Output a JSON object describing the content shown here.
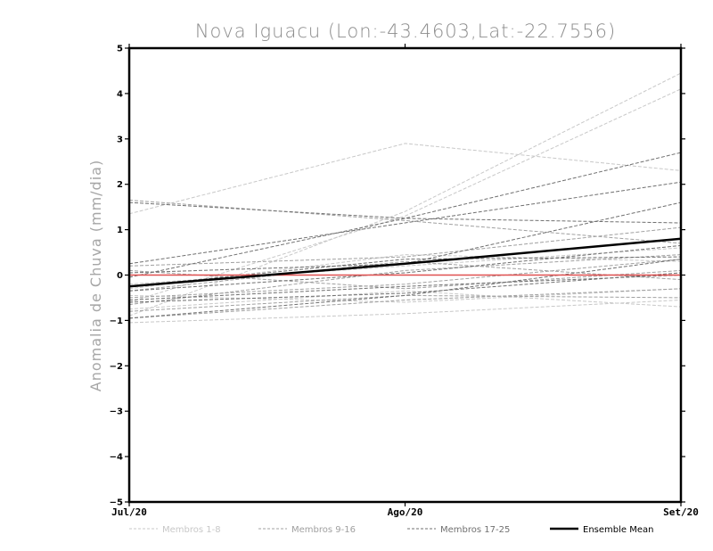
{
  "chart_data": {
    "type": "line",
    "title": "Nova Iguacu (Lon:-43.4603,Lat:-22.7556)",
    "ylabel": "Anomalia de Chuva (mm/dia)",
    "xlabel": "",
    "x": [
      "Jul/20",
      "Ago/20",
      "Set/20"
    ],
    "ylim": [
      -5,
      5
    ],
    "yticks": [
      -5,
      -4,
      -3,
      -2,
      -1,
      0,
      1,
      2,
      3,
      4,
      5
    ],
    "grid": false,
    "legend_position": "bottom",
    "legend": [
      {
        "label": "Membros 1-8",
        "color": "#c8c8c8",
        "style": "dashed"
      },
      {
        "label": "Membros 9-16",
        "color": "#a0a0a0",
        "style": "dashed"
      },
      {
        "label": "Membros 17-25",
        "color": "#707070",
        "style": "dashed"
      },
      {
        "label": "Ensemble Mean",
        "color": "#000000",
        "style": "solid"
      }
    ],
    "zero_line": {
      "value": 0,
      "color": "#e05050"
    },
    "groups": [
      {
        "color": "#c8c8c8",
        "series": [
          [
            1.35,
            2.9,
            2.3
          ],
          [
            -0.9,
            1.4,
            4.45
          ],
          [
            -0.6,
            1.3,
            4.1
          ],
          [
            -1.05,
            -0.85,
            -0.55
          ],
          [
            -0.3,
            0.45,
            0.3
          ],
          [
            -0.75,
            -0.35,
            -0.7
          ],
          [
            -0.45,
            -0.6,
            -0.3
          ],
          [
            -0.2,
            0.2,
            0.6
          ]
        ]
      },
      {
        "color": "#a0a0a0",
        "series": [
          [
            1.65,
            1.2,
            0.7
          ],
          [
            -0.5,
            -0.2,
            0.35
          ],
          [
            0.2,
            0.4,
            1.05
          ],
          [
            -0.65,
            0.1,
            0.45
          ],
          [
            -0.95,
            -0.55,
            -0.3
          ],
          [
            -0.35,
            0.3,
            -0.1
          ],
          [
            0.1,
            -0.3,
            0.1
          ],
          [
            -0.8,
            -0.45,
            -0.5
          ]
        ]
      },
      {
        "color": "#707070",
        "series": [
          [
            0.25,
            1.15,
            2.05
          ],
          [
            -0.05,
            1.25,
            2.7
          ],
          [
            -0.95,
            -0.45,
            0.35
          ],
          [
            -0.35,
            0.05,
            0.65
          ],
          [
            -0.55,
            -0.25,
            0.0
          ],
          [
            0.05,
            0.25,
            1.6
          ],
          [
            1.6,
            1.25,
            1.15
          ],
          [
            -0.25,
            0.35,
            0.4
          ],
          [
            -0.6,
            -0.4,
            0.05
          ]
        ]
      }
    ],
    "ensemble_mean": [
      -0.25,
      0.25,
      0.8
    ]
  }
}
